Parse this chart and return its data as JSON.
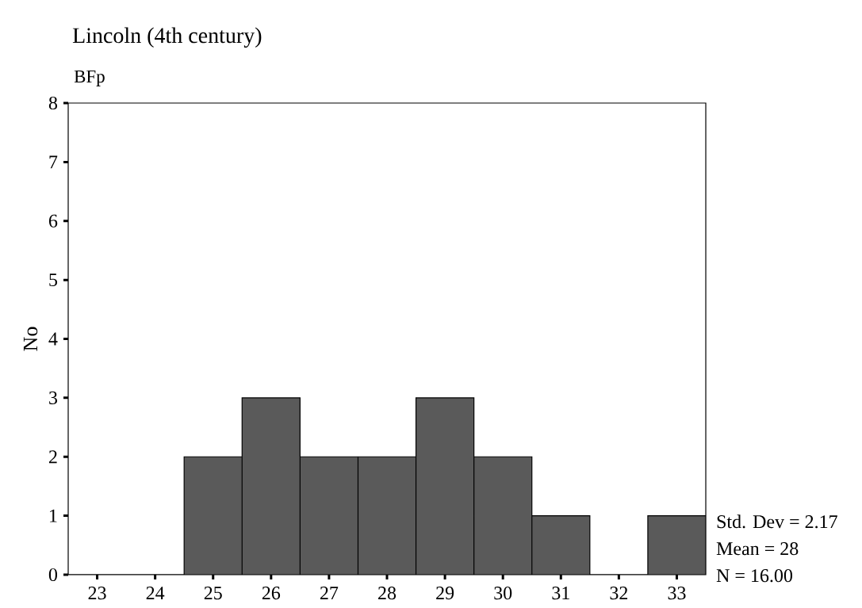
{
  "chart_data": {
    "type": "histogram",
    "title": "Lincoln (4th century)",
    "subtitle": "BFp",
    "ylabel": "No",
    "bins": [
      22.5,
      23.5,
      24.5,
      25.5,
      26.5,
      27.5,
      28.5,
      29.5,
      30.5,
      31.5,
      32.5,
      33.5
    ],
    "values": [
      0,
      0,
      2,
      3,
      2,
      2,
      3,
      2,
      1,
      0,
      1
    ],
    "color": "#5a5a5a",
    "xlim": [
      22.5,
      33.5
    ],
    "xticks": [
      23,
      24,
      25,
      26,
      27,
      28,
      29,
      30,
      31,
      32,
      33
    ],
    "ylim": [
      0,
      8
    ],
    "yticks": [
      0,
      1,
      2,
      3,
      4,
      5,
      6,
      7,
      8
    ],
    "annotations": [
      "Std. Dev = 2.17",
      "Mean = 28",
      "N = 16.00"
    ]
  }
}
